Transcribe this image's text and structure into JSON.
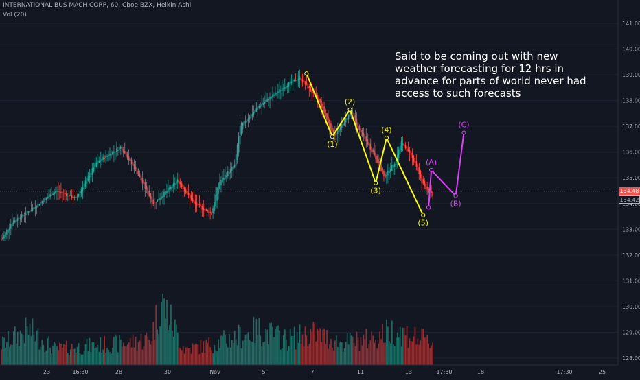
{
  "header": {
    "symbol_line": "INTERNATIONAL BUS MACH CORP, 60, Cboe BZX, Heikin Ashi",
    "volume_line": "Vol (20)"
  },
  "annotation_note": "Said to be coming out with new weather forecasting for 12 hrs in advance for parts of world never had access to such forecasts",
  "price_badges": {
    "last": "134.48",
    "close": "134.42"
  },
  "colors": {
    "background": "#131722",
    "up": "#26a69a",
    "down": "#ef5350",
    "vol_up": "#1e6b64",
    "vol_down": "#8c2f33",
    "impulse": "#ffff00",
    "correction": "#e040fb",
    "axis_text": "#b2b5be"
  },
  "chart_data": {
    "type": "candlestick",
    "price_axis": {
      "ticks": [
        "128.00",
        "129.00",
        "130.00",
        "131.00",
        "132.00",
        "133.00",
        "134.00",
        "135.00",
        "136.00",
        "137.00",
        "138.00",
        "139.00",
        "140.00",
        "141.00"
      ],
      "ylim": [
        127.8,
        141.6
      ]
    },
    "time_axis": {
      "labels": [
        "23",
        "16:30",
        "28",
        "30",
        "Nov",
        "5",
        "7",
        "11",
        "13",
        "17:30",
        "18",
        "17:30",
        "25"
      ]
    },
    "last_price": 134.48,
    "price_path": [
      {
        "t": 0,
        "p": 132.6
      },
      {
        "t": 8,
        "p": 133.3
      },
      {
        "t": 20,
        "p": 133.7
      },
      {
        "t": 40,
        "p": 134.5
      },
      {
        "t": 55,
        "p": 134.2
      },
      {
        "t": 70,
        "p": 135.6
      },
      {
        "t": 88,
        "p": 136.2
      },
      {
        "t": 100,
        "p": 135.2
      },
      {
        "t": 112,
        "p": 134.0
      },
      {
        "t": 130,
        "p": 134.9
      },
      {
        "t": 142,
        "p": 134.0
      },
      {
        "t": 155,
        "p": 133.6
      },
      {
        "t": 160,
        "p": 134.8
      },
      {
        "t": 172,
        "p": 135.5
      },
      {
        "t": 176,
        "p": 137.0
      },
      {
        "t": 190,
        "p": 137.8
      },
      {
        "t": 210,
        "p": 138.6
      },
      {
        "t": 220,
        "p": 138.9
      },
      {
        "t": 235,
        "p": 137.9
      },
      {
        "t": 245,
        "p": 136.6
      },
      {
        "t": 258,
        "p": 137.6
      },
      {
        "t": 262,
        "p": 137.0
      },
      {
        "t": 275,
        "p": 135.9
      },
      {
        "t": 282,
        "p": 135.0
      },
      {
        "t": 290,
        "p": 135.6
      },
      {
        "t": 295,
        "p": 136.4
      },
      {
        "t": 305,
        "p": 135.6
      },
      {
        "t": 310,
        "p": 134.8
      },
      {
        "t": 318,
        "p": 134.3
      },
      {
        "t": 325,
        "p": 134.5
      }
    ],
    "volume_bursts": [
      {
        "t": 0,
        "v": 0.32
      },
      {
        "t": 20,
        "v": 0.55
      },
      {
        "t": 40,
        "v": 0.25
      },
      {
        "t": 66,
        "v": 0.3
      },
      {
        "t": 95,
        "v": 0.35
      },
      {
        "t": 110,
        "v": 0.42
      },
      {
        "t": 118,
        "v": 1.0
      },
      {
        "t": 135,
        "v": 0.25
      },
      {
        "t": 150,
        "v": 0.3
      },
      {
        "t": 175,
        "v": 0.45
      },
      {
        "t": 190,
        "v": 0.55
      },
      {
        "t": 210,
        "v": 0.4
      },
      {
        "t": 230,
        "v": 0.5
      },
      {
        "t": 250,
        "v": 0.35
      },
      {
        "t": 270,
        "v": 0.4
      },
      {
        "t": 290,
        "v": 0.55
      },
      {
        "t": 310,
        "v": 0.4
      },
      {
        "t": 325,
        "v": 0.3
      }
    ],
    "impulse_wave": {
      "points": [
        {
          "label": "",
          "t": 225,
          "p": 139.05
        },
        {
          "label": "(1)",
          "t": 244,
          "p": 136.6
        },
        {
          "label": "(2)",
          "t": 257,
          "p": 137.65
        },
        {
          "label": "(3)",
          "t": 276,
          "p": 134.8
        },
        {
          "label": "(4)",
          "t": 284,
          "p": 136.55
        },
        {
          "label": "(5)",
          "t": 311,
          "p": 133.55
        }
      ]
    },
    "correction_wave": {
      "points": [
        {
          "label": "",
          "t": 315,
          "p": 133.85
        },
        {
          "label": "(A)",
          "t": 317,
          "p": 135.3
        },
        {
          "label": "(B)",
          "t": 335,
          "p": 134.3
        },
        {
          "label": "(C)",
          "t": 341,
          "p": 136.75
        }
      ]
    }
  }
}
